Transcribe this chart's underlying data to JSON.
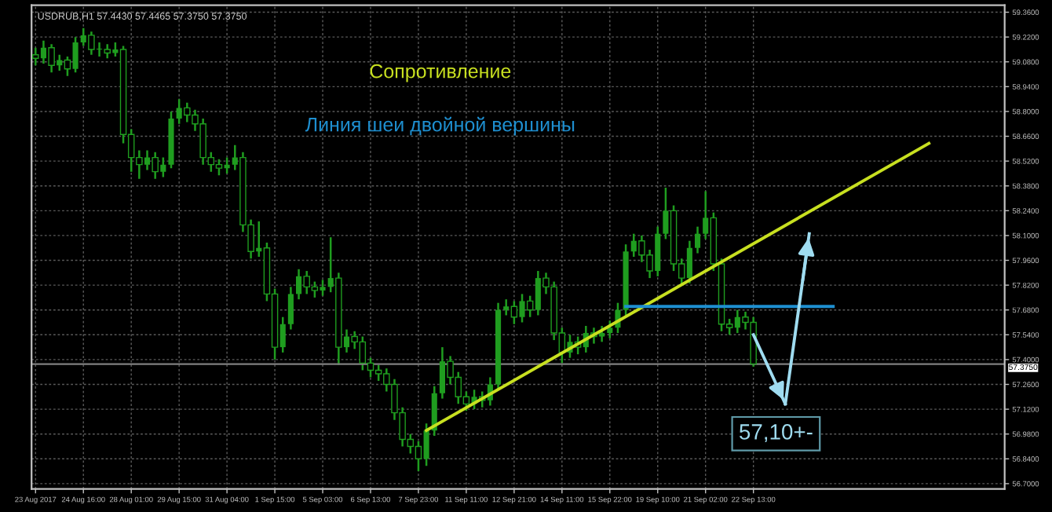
{
  "chart_data": {
    "type": "candlestick",
    "title": "USDRUB,H1 57.4430 57.4465 57.3750 57.3750",
    "categories": [
      "23 Aug 2017",
      null,
      null,
      null,
      null,
      null,
      "24 Aug 16:00",
      null,
      null,
      null,
      null,
      null,
      "28 Aug 01:00",
      null,
      null,
      null,
      null,
      null,
      "29 Aug 15:00",
      null,
      null,
      null,
      null,
      null,
      "31 Aug 04:00",
      null,
      null,
      null,
      null,
      null,
      "1 Sep 15:00",
      null,
      null,
      null,
      null,
      null,
      "5 Sep 03:00",
      null,
      null,
      null,
      null,
      null,
      "6 Sep 13:00",
      null,
      null,
      null,
      null,
      null,
      "7 Sep 23:00",
      null,
      null,
      null,
      null,
      null,
      "11 Sep 11:00",
      null,
      null,
      null,
      null,
      null,
      "12 Sep 21:00",
      null,
      null,
      null,
      null,
      null,
      "14 Sep 11:00",
      null,
      null,
      null,
      null,
      null,
      "15 Sep 22:00",
      null,
      null,
      null,
      null,
      null,
      "19 Sep 10:00",
      null,
      null,
      null,
      null,
      null,
      "21 Sep 02:00",
      null,
      null,
      null,
      null,
      null,
      "22 Sep 13:00",
      null,
      null,
      null,
      null,
      null,
      null,
      null,
      null,
      null,
      null,
      null,
      null,
      null,
      null,
      null,
      null,
      null,
      null,
      null,
      null,
      null,
      null,
      null,
      null,
      null,
      null,
      null,
      null,
      null,
      null,
      null
    ],
    "ylim": [
      56.67,
      59.4
    ],
    "yticks": [
      {
        "value": 59.36,
        "label": "59.3600"
      },
      {
        "value": 59.22,
        "label": "59.2200"
      },
      {
        "value": 59.08,
        "label": "59.0800"
      },
      {
        "value": 58.94,
        "label": "58.9400"
      },
      {
        "value": 58.8,
        "label": "58.8000"
      },
      {
        "value": 58.66,
        "label": "58.6600"
      },
      {
        "value": 58.52,
        "label": "58.5200"
      },
      {
        "value": 58.38,
        "label": "58.3800"
      },
      {
        "value": 58.24,
        "label": "58.2400"
      },
      {
        "value": 58.1,
        "label": "58.1000"
      },
      {
        "value": 57.96,
        "label": "57.9600"
      },
      {
        "value": 57.82,
        "label": "57.8200"
      },
      {
        "value": 57.68,
        "label": "57.6800"
      },
      {
        "value": 57.54,
        "label": "57.5400"
      },
      {
        "value": 57.4,
        "label": "57.4000"
      },
      {
        "value": 57.26,
        "label": "57.2600"
      },
      {
        "value": 57.12,
        "label": "57.1200"
      },
      {
        "value": 56.98,
        "label": "56.9800"
      },
      {
        "value": 56.84,
        "label": "56.8400"
      },
      {
        "value": 56.7,
        "label": "56.7000"
      }
    ],
    "grid": true,
    "series": [
      {
        "type": "candlestick",
        "color": "#1f9d1f",
        "ohlc": [
          [
            59.12,
            59.16,
            59.06,
            59.1
          ],
          [
            59.1,
            59.2,
            59.07,
            59.16
          ],
          [
            59.16,
            59.18,
            59.02,
            59.06
          ],
          [
            59.06,
            59.12,
            59.03,
            59.09
          ],
          [
            59.09,
            59.11,
            59.0,
            59.04
          ],
          [
            59.04,
            59.22,
            59.02,
            59.19
          ],
          [
            59.19,
            59.27,
            59.17,
            59.23
          ],
          [
            59.23,
            59.25,
            59.12,
            59.15
          ],
          [
            59.15,
            59.19,
            59.11,
            59.15
          ],
          [
            59.15,
            59.18,
            59.1,
            59.13
          ],
          [
            59.13,
            59.19,
            59.11,
            59.15
          ],
          [
            59.15,
            59.17,
            58.62,
            58.67
          ],
          [
            58.67,
            58.7,
            58.46,
            58.54
          ],
          [
            58.54,
            58.58,
            58.42,
            58.5
          ],
          [
            58.5,
            58.58,
            58.47,
            58.54
          ],
          [
            58.54,
            58.57,
            58.42,
            58.46
          ],
          [
            58.46,
            58.54,
            58.43,
            58.5
          ],
          [
            58.5,
            58.8,
            58.48,
            58.76
          ],
          [
            58.76,
            58.87,
            58.73,
            58.82
          ],
          [
            58.82,
            58.85,
            58.74,
            58.78
          ],
          [
            58.78,
            58.81,
            58.69,
            58.73
          ],
          [
            58.73,
            58.76,
            58.5,
            58.54
          ],
          [
            58.54,
            58.57,
            58.46,
            58.5
          ],
          [
            58.5,
            58.53,
            58.44,
            58.48
          ],
          [
            58.48,
            58.54,
            58.45,
            58.5
          ],
          [
            58.5,
            58.61,
            58.47,
            58.54
          ],
          [
            58.54,
            58.57,
            58.12,
            58.16
          ],
          [
            58.16,
            58.19,
            57.97,
            58.01
          ],
          [
            58.01,
            58.18,
            57.98,
            58.03
          ],
          [
            58.03,
            58.06,
            57.73,
            57.77
          ],
          [
            57.77,
            57.8,
            57.4,
            57.47
          ],
          [
            57.47,
            57.64,
            57.44,
            57.6
          ],
          [
            57.6,
            57.81,
            57.57,
            57.77
          ],
          [
            57.77,
            57.91,
            57.74,
            57.87
          ],
          [
            57.87,
            57.9,
            57.77,
            57.81
          ],
          [
            57.81,
            57.84,
            57.75,
            57.79
          ],
          [
            57.79,
            57.85,
            57.76,
            57.81
          ],
          [
            57.81,
            58.09,
            57.78,
            57.86
          ],
          [
            57.86,
            57.89,
            57.37,
            57.47
          ],
          [
            57.47,
            57.57,
            57.44,
            57.53
          ],
          [
            57.53,
            57.56,
            57.46,
            57.5
          ],
          [
            57.5,
            57.53,
            57.34,
            57.38
          ],
          [
            57.38,
            57.41,
            57.3,
            57.34
          ],
          [
            57.34,
            57.37,
            57.28,
            57.32
          ],
          [
            57.32,
            57.35,
            57.22,
            57.26
          ],
          [
            57.26,
            57.29,
            57.06,
            57.1
          ],
          [
            57.1,
            57.13,
            56.91,
            56.95
          ],
          [
            56.95,
            56.98,
            56.87,
            56.91
          ],
          [
            56.91,
            56.94,
            56.77,
            56.84
          ],
          [
            56.84,
            57.04,
            56.8,
            57.0
          ],
          [
            57.0,
            57.25,
            56.97,
            57.21
          ],
          [
            57.21,
            57.47,
            57.18,
            57.39
          ],
          [
            57.39,
            57.42,
            57.26,
            57.3
          ],
          [
            57.3,
            57.33,
            57.15,
            57.19
          ],
          [
            57.19,
            57.22,
            57.11,
            57.15
          ],
          [
            57.15,
            57.23,
            57.12,
            57.19
          ],
          [
            57.19,
            57.22,
            57.13,
            57.17
          ],
          [
            57.17,
            57.3,
            57.14,
            57.26
          ],
          [
            57.26,
            57.72,
            57.23,
            57.68
          ],
          [
            57.68,
            57.74,
            57.65,
            57.7
          ],
          [
            57.7,
            57.73,
            57.6,
            57.64
          ],
          [
            57.64,
            57.77,
            57.61,
            57.73
          ],
          [
            57.73,
            57.76,
            57.64,
            57.68
          ],
          [
            57.68,
            57.9,
            57.65,
            57.86
          ],
          [
            57.86,
            57.89,
            57.77,
            57.81
          ],
          [
            57.81,
            57.84,
            57.51,
            57.55
          ],
          [
            57.55,
            57.58,
            57.38,
            57.44
          ],
          [
            57.44,
            57.54,
            57.41,
            57.5
          ],
          [
            57.5,
            57.53,
            57.43,
            57.47
          ],
          [
            57.47,
            57.59,
            57.44,
            57.55
          ],
          [
            57.55,
            57.58,
            57.49,
            57.53
          ],
          [
            57.53,
            57.59,
            57.5,
            57.55
          ],
          [
            57.55,
            57.62,
            57.52,
            57.58
          ],
          [
            57.58,
            57.72,
            57.55,
            57.68
          ],
          [
            57.68,
            58.05,
            57.65,
            58.01
          ],
          [
            58.01,
            58.11,
            57.98,
            58.07
          ],
          [
            58.07,
            58.1,
            57.95,
            57.99
          ],
          [
            57.99,
            58.02,
            57.86,
            57.9
          ],
          [
            57.9,
            58.15,
            57.87,
            58.11
          ],
          [
            58.11,
            58.37,
            58.08,
            58.24
          ],
          [
            58.24,
            58.27,
            57.9,
            57.94
          ],
          [
            57.94,
            57.97,
            57.82,
            57.86
          ],
          [
            57.86,
            58.07,
            57.83,
            58.03
          ],
          [
            58.03,
            58.15,
            58.0,
            58.11
          ],
          [
            58.11,
            58.35,
            58.08,
            58.2
          ],
          [
            58.2,
            58.23,
            57.9,
            57.94
          ],
          [
            57.94,
            57.97,
            57.56,
            57.6
          ],
          [
            57.6,
            57.63,
            57.54,
            57.58
          ],
          [
            57.58,
            57.68,
            57.55,
            57.64
          ],
          [
            57.64,
            57.67,
            57.57,
            57.61
          ],
          [
            57.61,
            57.64,
            57.36,
            57.375
          ],
          null,
          null,
          null,
          null,
          null,
          null,
          null,
          null,
          null,
          null,
          null,
          null,
          null,
          null,
          null,
          null,
          null,
          null,
          null,
          null,
          null,
          null,
          null,
          null,
          null,
          null,
          null,
          null,
          null,
          null,
          null
        ]
      },
      {
        "type": "line",
        "color": "#c8e020",
        "values": [
          null,
          null,
          null,
          null,
          null,
          null,
          null,
          null,
          null,
          null,
          null,
          null,
          null,
          null,
          null,
          null,
          null,
          null,
          null,
          null,
          null,
          null,
          null,
          null,
          null,
          null,
          null,
          null,
          null,
          null,
          null,
          null,
          null,
          null,
          null,
          null,
          null,
          null,
          null,
          null,
          null,
          null,
          null,
          null,
          null,
          null,
          null,
          null,
          null,
          57.0,
          null,
          null,
          null,
          null,
          null,
          null,
          null,
          null,
          null,
          null,
          null,
          null,
          null,
          null,
          null,
          null,
          null,
          null,
          null,
          null,
          null,
          null,
          null,
          null,
          null,
          null,
          null,
          null,
          null,
          null,
          null,
          null,
          null,
          null,
          null,
          null,
          null,
          null,
          null,
          null,
          null,
          null,
          null,
          null,
          null,
          null,
          null,
          null,
          null,
          null,
          null,
          null,
          null,
          null,
          null,
          null,
          null,
          null,
          null,
          null,
          null,
          null,
          58.62,
          null,
          null,
          null,
          null,
          null,
          null,
          null,
          null,
          null
        ]
      },
      {
        "type": "line",
        "color": "#1e8fd0",
        "values": [
          null,
          null,
          null,
          null,
          null,
          null,
          null,
          null,
          null,
          null,
          null,
          null,
          null,
          null,
          null,
          null,
          null,
          null,
          null,
          null,
          null,
          null,
          null,
          null,
          null,
          null,
          null,
          null,
          null,
          null,
          null,
          null,
          null,
          null,
          null,
          null,
          null,
          null,
          null,
          null,
          null,
          null,
          null,
          null,
          null,
          null,
          null,
          null,
          null,
          null,
          null,
          null,
          null,
          null,
          null,
          null,
          null,
          null,
          null,
          null,
          null,
          null,
          null,
          null,
          null,
          null,
          null,
          null,
          null,
          null,
          null,
          null,
          null,
          null,
          57.7,
          null,
          null,
          null,
          null,
          null,
          null,
          null,
          null,
          null,
          null,
          null,
          null,
          null,
          null,
          null,
          null,
          null,
          null,
          null,
          null,
          null,
          null,
          null,
          null,
          null,
          57.7,
          null,
          null,
          null,
          null,
          null,
          null,
          null,
          null,
          null,
          null,
          null,
          null,
          null,
          null,
          null,
          null,
          null,
          null,
          null,
          null,
          null
        ]
      },
      {
        "type": "line",
        "color": "#9fdcf0",
        "values": [
          null,
          null,
          null,
          null,
          null,
          null,
          null,
          null,
          null,
          null,
          null,
          null,
          null,
          null,
          null,
          null,
          null,
          null,
          null,
          null,
          null,
          null,
          null,
          null,
          null,
          null,
          null,
          null,
          null,
          null,
          null,
          null,
          null,
          null,
          null,
          null,
          null,
          null,
          null,
          null,
          null,
          null,
          null,
          null,
          null,
          null,
          null,
          null,
          null,
          null,
          null,
          null,
          null,
          null,
          null,
          null,
          null,
          null,
          null,
          null,
          null,
          null,
          null,
          null,
          null,
          null,
          null,
          null,
          null,
          null,
          null,
          null,
          null,
          null,
          null,
          null,
          null,
          null,
          null,
          null,
          null,
          null,
          null,
          null,
          null,
          null,
          null,
          null,
          null,
          null,
          57.54,
          null,
          null,
          null,
          57.15,
          null,
          null,
          null,
          null,
          null,
          null,
          null,
          null,
          null,
          null,
          null,
          null,
          null,
          null,
          null,
          null,
          null,
          null,
          null,
          null,
          null,
          null,
          null,
          null,
          null,
          null,
          null
        ]
      },
      {
        "type": "line",
        "color": "#9fdcf0",
        "values": [
          null,
          null,
          null,
          null,
          null,
          null,
          null,
          null,
          null,
          null,
          null,
          null,
          null,
          null,
          null,
          null,
          null,
          null,
          null,
          null,
          null,
          null,
          null,
          null,
          null,
          null,
          null,
          null,
          null,
          null,
          null,
          null,
          null,
          null,
          null,
          null,
          null,
          null,
          null,
          null,
          null,
          null,
          null,
          null,
          null,
          null,
          null,
          null,
          null,
          null,
          null,
          null,
          null,
          null,
          null,
          null,
          null,
          null,
          null,
          null,
          null,
          null,
          null,
          null,
          null,
          null,
          null,
          null,
          null,
          null,
          null,
          null,
          null,
          null,
          null,
          null,
          null,
          null,
          null,
          null,
          null,
          null,
          null,
          null,
          null,
          null,
          null,
          null,
          null,
          null,
          null,
          null,
          null,
          null,
          57.15,
          null,
          null,
          58.11,
          null,
          null,
          null,
          null,
          null,
          null,
          null,
          null,
          null,
          null,
          null,
          null,
          null,
          null,
          null,
          null,
          null,
          null,
          null,
          null,
          null,
          null,
          null,
          null
        ]
      }
    ],
    "ref_lines": [
      {
        "axis": "y",
        "value": 57.375,
        "label": "57.3750",
        "color": "#7f7f7f"
      }
    ],
    "annotations": [
      "Сопротивление",
      "Линия шеи двойной вершины",
      {
        "text": "57,10+-",
        "y": 57.15
      }
    ]
  }
}
